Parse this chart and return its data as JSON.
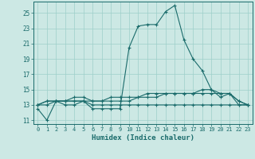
{
  "xlabel": "Humidex (Indice chaleur)",
  "bg_color": "#cce8e4",
  "grid_color": "#9ecfca",
  "line_color": "#1a6b6b",
  "xlim": [
    -0.5,
    23.5
  ],
  "ylim": [
    10.5,
    26.5
  ],
  "yticks": [
    11,
    13,
    15,
    17,
    19,
    21,
    23,
    25
  ],
  "xticks": [
    0,
    1,
    2,
    3,
    4,
    5,
    6,
    7,
    8,
    9,
    10,
    11,
    12,
    13,
    14,
    15,
    16,
    17,
    18,
    19,
    20,
    21,
    22,
    23
  ],
  "series": [
    [
      12.5,
      11.0,
      13.5,
      13.0,
      13.0,
      13.5,
      12.5,
      12.5,
      12.5,
      12.5,
      20.5,
      23.3,
      23.5,
      23.5,
      25.2,
      26.0,
      21.5,
      19.0,
      17.5,
      15.0,
      14.0,
      14.5,
      13.0,
      13.0
    ],
    [
      13.0,
      13.5,
      13.5,
      13.5,
      13.5,
      13.5,
      13.5,
      13.5,
      14.0,
      14.0,
      14.0,
      14.0,
      14.0,
      14.0,
      14.5,
      14.5,
      14.5,
      14.5,
      15.0,
      15.0,
      14.5,
      14.5,
      13.5,
      13.0
    ],
    [
      13.0,
      13.0,
      13.5,
      13.5,
      13.5,
      13.5,
      13.0,
      13.0,
      13.0,
      13.0,
      13.0,
      13.0,
      13.0,
      13.0,
      13.0,
      13.0,
      13.0,
      13.0,
      13.0,
      13.0,
      13.0,
      13.0,
      13.0,
      13.0
    ],
    [
      13.0,
      13.5,
      13.5,
      13.5,
      14.0,
      14.0,
      13.5,
      13.5,
      13.5,
      13.5,
      13.5,
      14.0,
      14.5,
      14.5,
      14.5,
      14.5,
      14.5,
      14.5,
      14.5,
      14.5,
      14.5,
      14.5,
      13.5,
      13.0
    ]
  ]
}
